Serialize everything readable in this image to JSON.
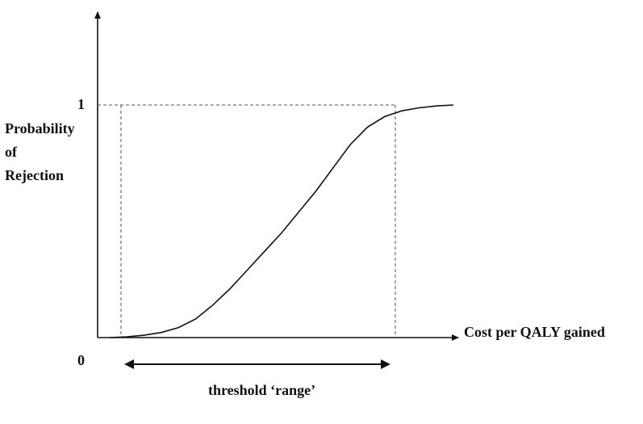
{
  "chart_data": {
    "type": "line",
    "ylabel_lines": [
      "Probability",
      "of",
      "Rejection"
    ],
    "xlabel": "Cost per QALY gained",
    "y_ticks": [
      "1",
      "0"
    ],
    "ylim": [
      0,
      1
    ],
    "series": [
      {
        "points": [
          [
            0.0,
            0.0
          ],
          [
            0.05,
            0.003
          ],
          [
            0.1,
            0.01
          ],
          [
            0.15,
            0.022
          ],
          [
            0.2,
            0.043
          ],
          [
            0.25,
            0.08
          ],
          [
            0.3,
            0.14
          ],
          [
            0.35,
            0.21
          ],
          [
            0.4,
            0.29
          ],
          [
            0.45,
            0.37
          ],
          [
            0.5,
            0.45
          ],
          [
            0.55,
            0.54
          ],
          [
            0.6,
            0.63
          ],
          [
            0.65,
            0.73
          ],
          [
            0.7,
            0.83
          ],
          [
            0.75,
            0.905
          ],
          [
            0.8,
            0.95
          ],
          [
            0.85,
            0.975
          ],
          [
            0.9,
            0.988
          ],
          [
            0.95,
            0.996
          ],
          [
            1.0,
            1.0
          ]
        ]
      }
    ],
    "annotation": "threshold ‘range’"
  },
  "colors": {
    "line": "#111111",
    "dashed": "#555555"
  }
}
